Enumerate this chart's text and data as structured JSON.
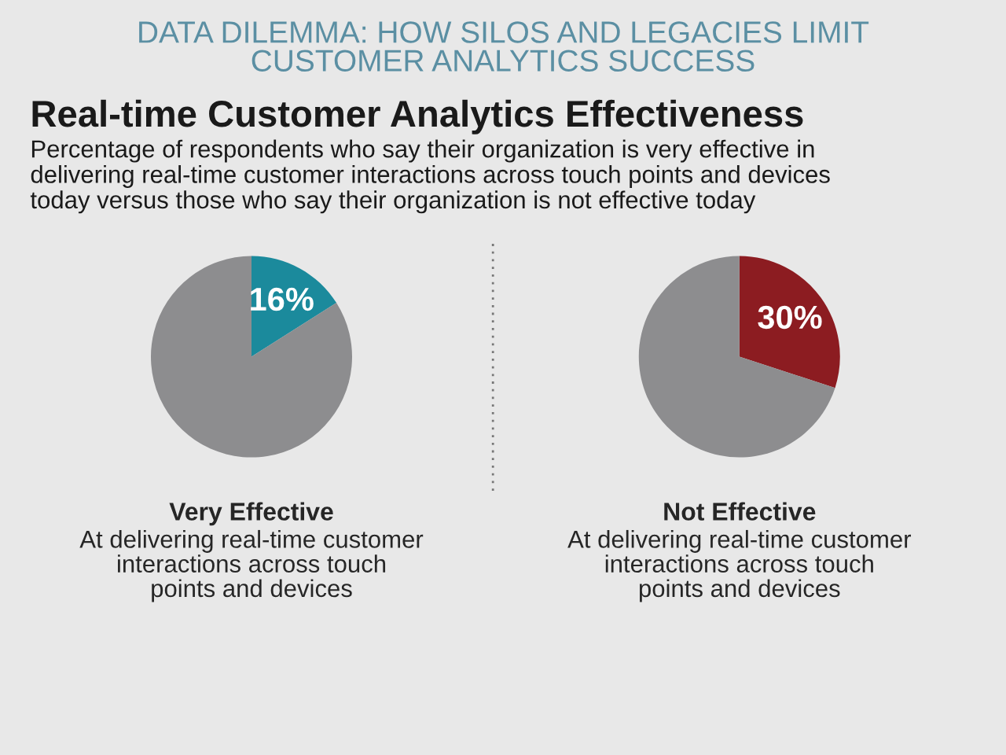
{
  "chart_data": [
    {
      "type": "pie",
      "title": "Real-time Customer Analytics Effectiveness",
      "subtitle": "Percentage of respondents who say their organization is very effective in\ndelivering real-time customer interactions across touch points and devices\ntoday versus those who say their organization is not effective today",
      "annotations": [
        "DATA DILEMMA: HOW SILOS AND LEGACIES LIMIT\nCUSTOMER ANALYTICS SUCCESS",
        "At delivering real-time customer\ninteractions across touch\npoints and devices"
      ],
      "xlabel": "Very Effective",
      "categories": [
        null,
        null
      ],
      "values": [
        16,
        84
      ],
      "colors": [
        "#1b8a9c",
        "#8d8d8f"
      ],
      "value_labels": [
        "16%",
        null
      ]
    },
    {
      "type": "pie",
      "annotations": [
        "At delivering real-time customer\ninteractions across touch\npoints and devices"
      ],
      "xlabel": "Not Effective",
      "categories": [
        null,
        null
      ],
      "values": [
        30,
        70
      ],
      "colors": [
        "#8c1c21",
        "#8d8d8f"
      ],
      "value_labels": [
        "30%",
        null
      ]
    }
  ]
}
